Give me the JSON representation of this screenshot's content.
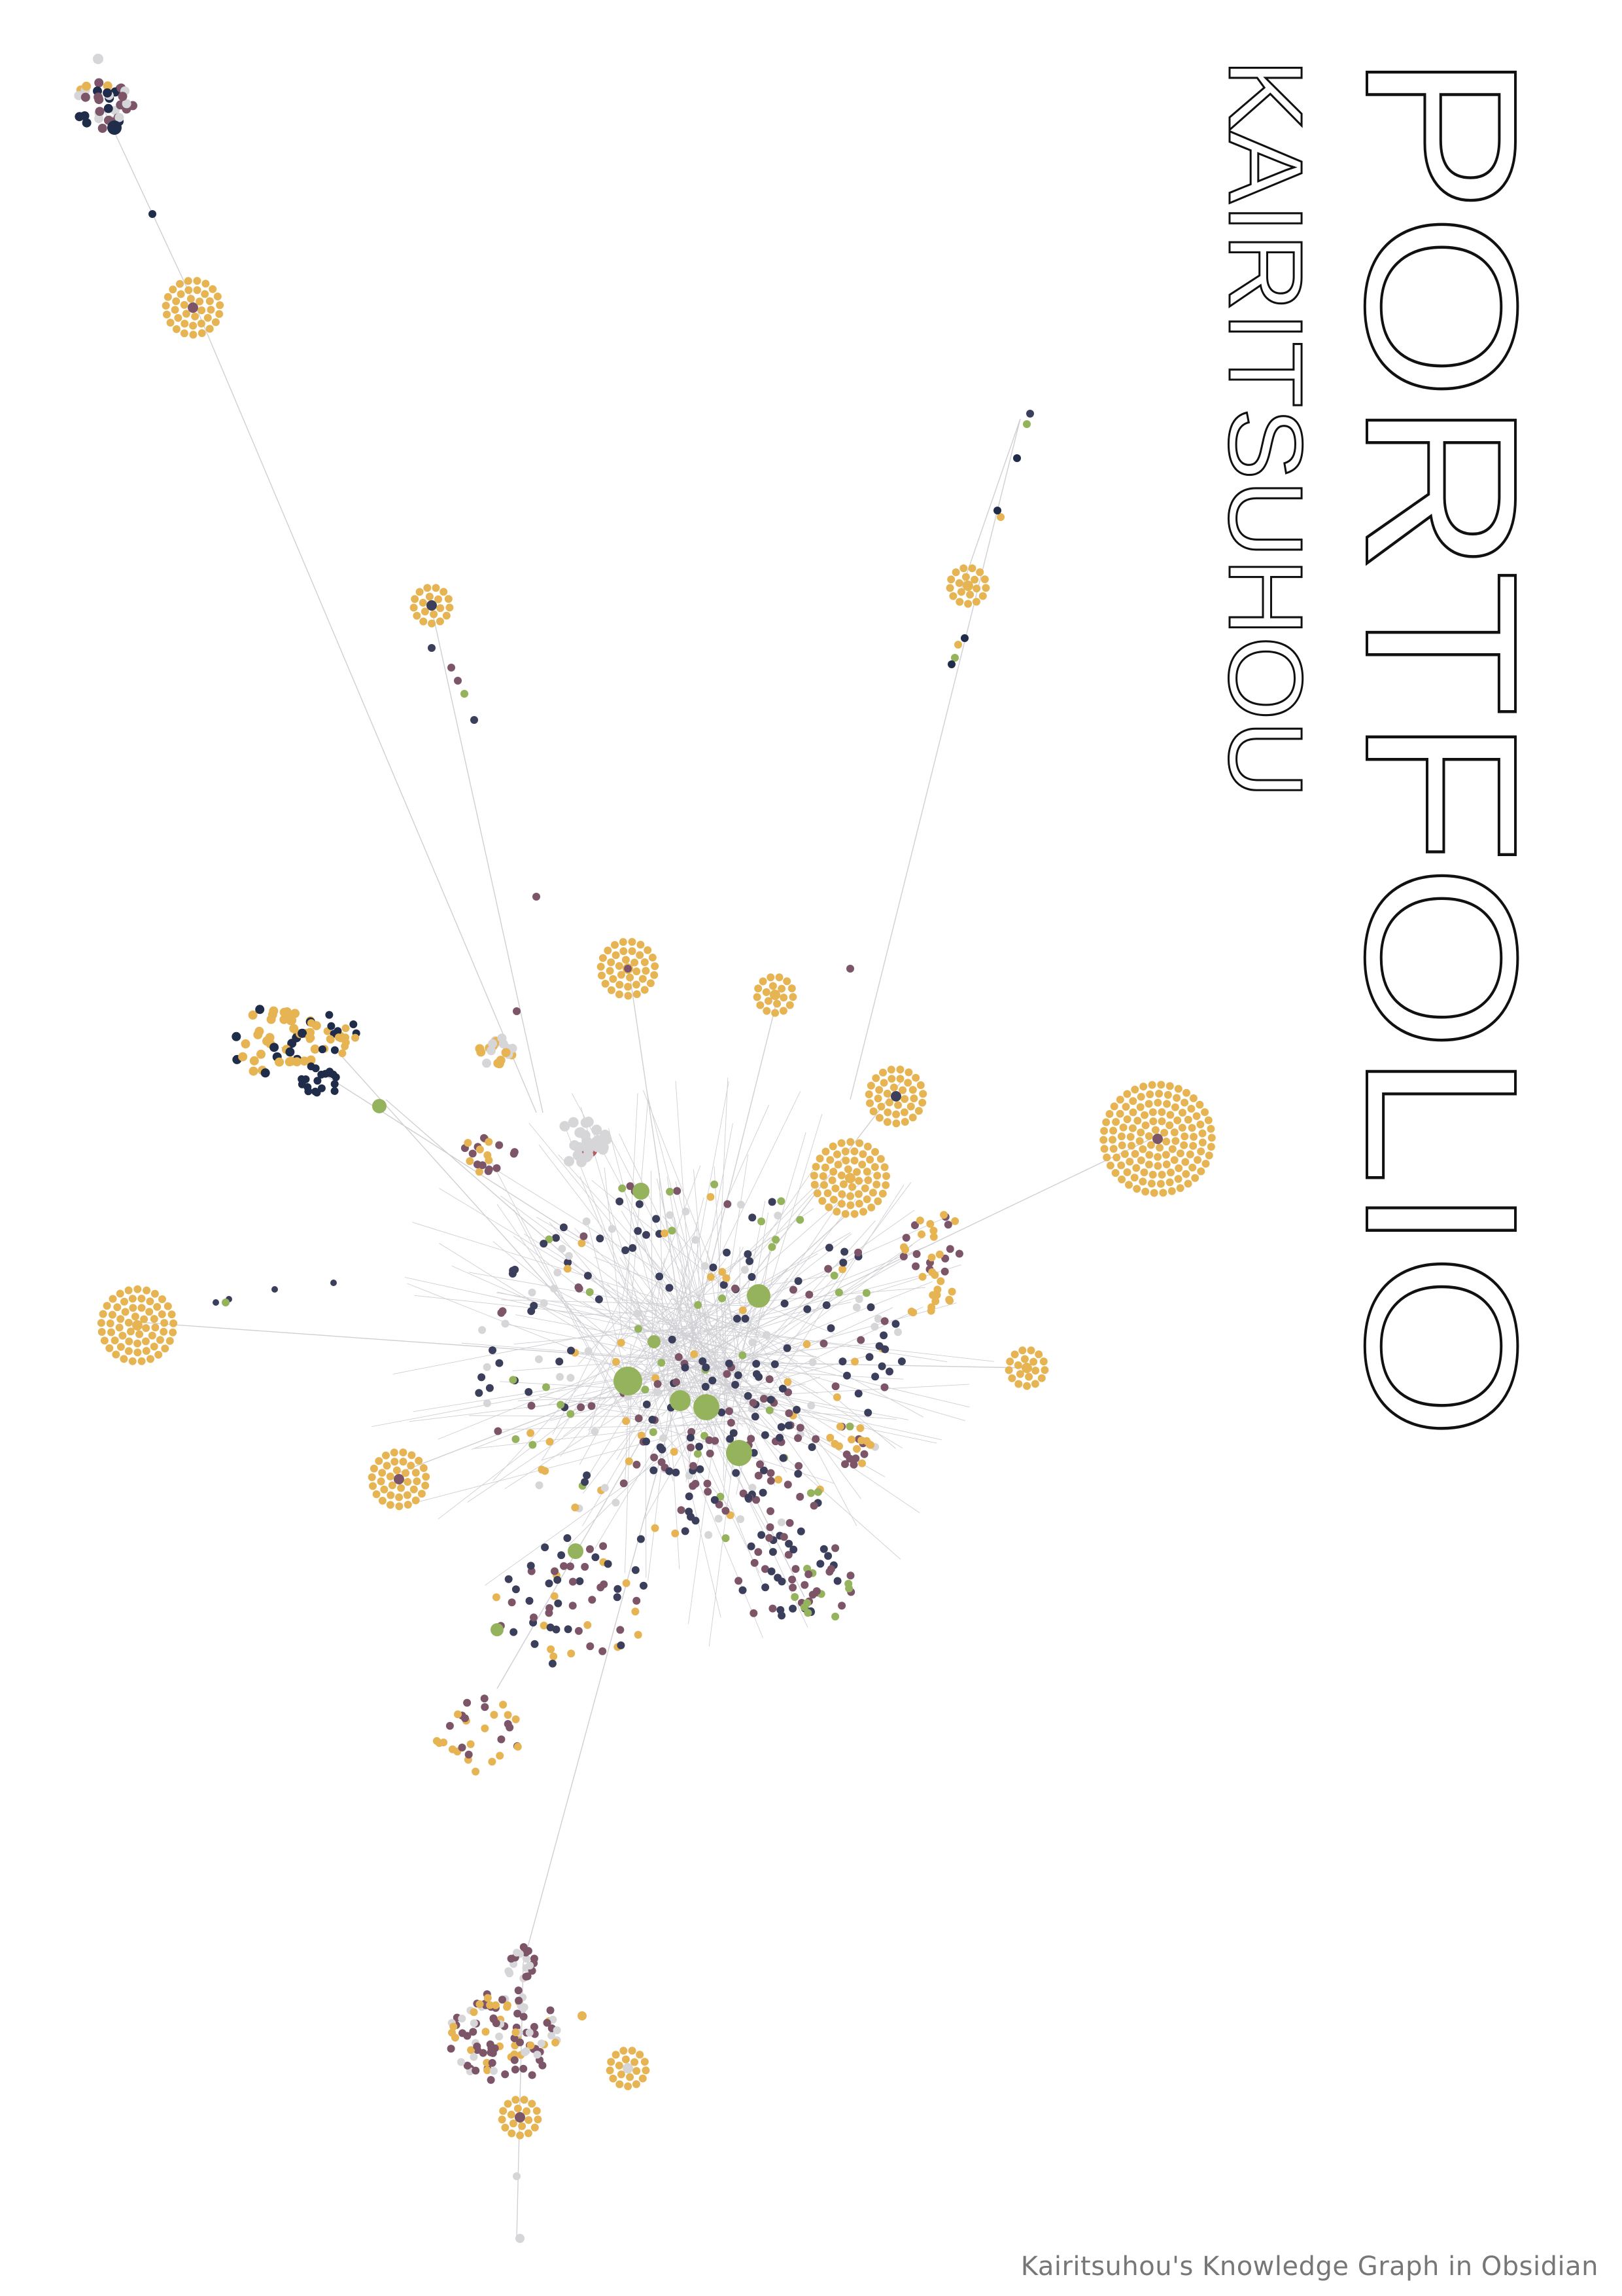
{
  "title": "PORTFOLIO",
  "subtitle": "KAIRITSUHOU",
  "caption": "Kairitsuhou's Knowledge Graph in Obsidian",
  "colors": {
    "background": "#ffffff",
    "title_stroke": "#111111",
    "edge": "#cfcfd4",
    "caption": "#777777",
    "node_gold": "#e7b453",
    "node_navy": "#3b3f5c",
    "node_dark_navy": "#1f2c4a",
    "node_mauve": "#7d5568",
    "node_green": "#94b35c",
    "node_grey": "#d6d6d9",
    "node_red": "#b55d63"
  },
  "graph": {
    "kind": "knowledge-graph",
    "clusters": [
      "gold",
      "navy",
      "mauve",
      "green",
      "grey"
    ]
  }
}
